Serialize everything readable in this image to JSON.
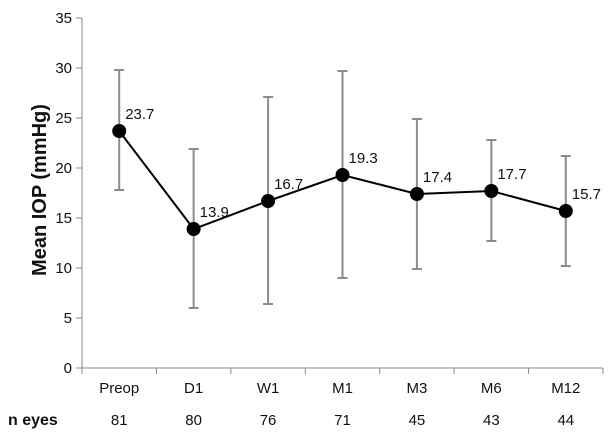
{
  "chart_data": {
    "type": "line",
    "title": "",
    "xlabel": "",
    "ylabel": "Mean IOP (mmHg)",
    "ylim": [
      0,
      35
    ],
    "yticks": [
      0,
      5,
      10,
      15,
      20,
      25,
      30,
      35
    ],
    "grid": false,
    "categories": [
      "Preop",
      "D1",
      "W1",
      "M1",
      "M3",
      "M6",
      "M12"
    ],
    "values": [
      23.7,
      13.9,
      16.7,
      19.3,
      17.4,
      17.7,
      15.7
    ],
    "value_labels": [
      "23.7",
      "13.9",
      "16.7",
      "19.3",
      "17.4",
      "17.7",
      "15.7"
    ],
    "error_low": [
      17.8,
      6.0,
      6.4,
      9.0,
      9.9,
      12.7,
      10.2
    ],
    "error_high": [
      29.8,
      21.9,
      27.1,
      29.7,
      24.9,
      22.8,
      21.2
    ],
    "n_eyes_label": "n eyes",
    "n_eyes": [
      "81",
      "80",
      "76",
      "71",
      "45",
      "43",
      "44"
    ],
    "colors": {
      "line": "#000000",
      "marker": "#000000",
      "error_bar": "#8c8c8c",
      "axis": "#888888"
    }
  }
}
